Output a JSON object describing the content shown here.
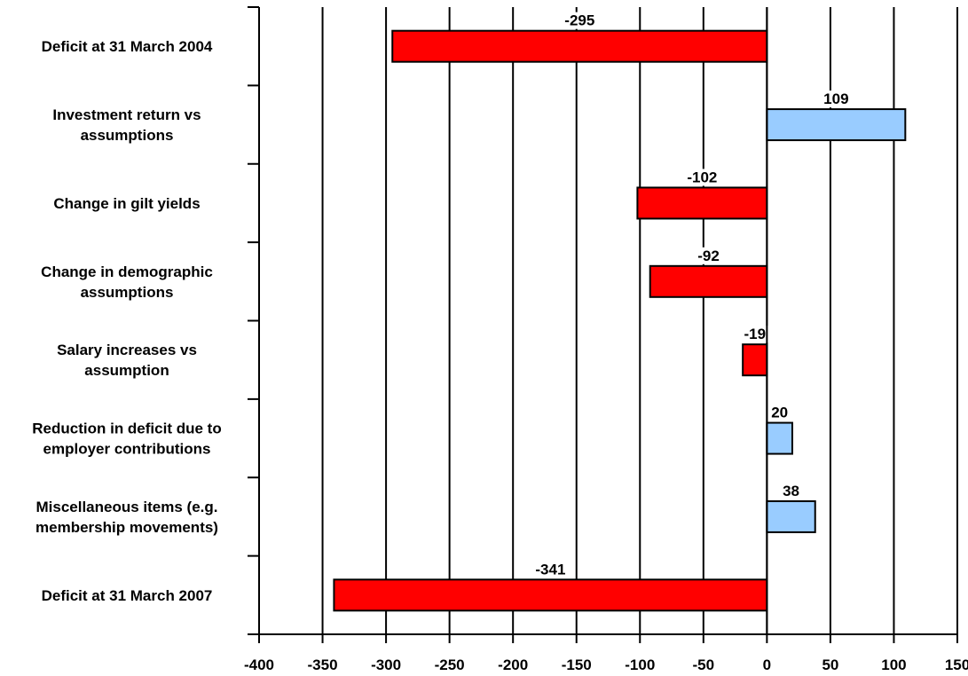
{
  "chart_data": {
    "type": "bar",
    "orientation": "horizontal",
    "categories": [
      [
        "Deficit at 31 March 2004"
      ],
      [
        "Investment return vs",
        "assumptions"
      ],
      [
        "Change in gilt yields"
      ],
      [
        "Change in demographic",
        "assumptions"
      ],
      [
        "Salary increases vs",
        "assumption"
      ],
      [
        "Reduction in deficit due to",
        "employer contributions"
      ],
      [
        "Miscellaneous items (e.g.",
        "membership movements)"
      ],
      [
        "Deficit at 31 March 2007"
      ]
    ],
    "values": [
      -295,
      109,
      -102,
      -92,
      -19,
      20,
      38,
      -341
    ],
    "data_labels": [
      "-295",
      "109",
      "-102",
      "-92",
      "-19",
      "20",
      "38",
      "-341"
    ],
    "xlim": [
      -400,
      150
    ],
    "xticks": [
      -400,
      -350,
      -300,
      -250,
      -200,
      -150,
      -100,
      -50,
      0,
      50,
      100,
      150
    ],
    "grid": "vertical",
    "colors": {
      "negative": "#ff0000",
      "positive": "#99ccff",
      "stroke": "#000000",
      "grid": "#000000"
    },
    "title": "",
    "xlabel": "",
    "ylabel": ""
  }
}
